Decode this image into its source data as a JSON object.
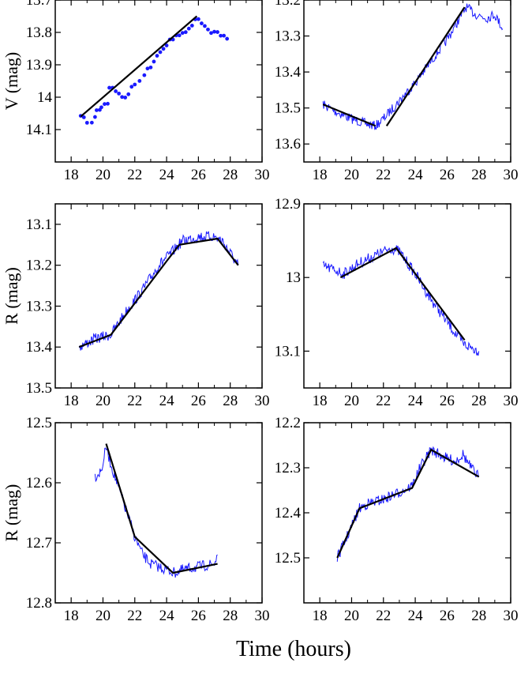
{
  "xlabel": "Time  (hours)",
  "colors": {
    "data": "#1a1aff",
    "fit": "#000000",
    "frame": "#000000"
  },
  "chart_data": [
    {
      "type": "line",
      "panel": "top-left",
      "style": "dots",
      "ylabel": "V (mag)",
      "xlim": [
        17,
        30
      ],
      "ylim": [
        14.2,
        13.7
      ],
      "inverted_y": true,
      "xticks": [
        18,
        20,
        22,
        24,
        26,
        28,
        30
      ],
      "yticks": [
        13.7,
        13.8,
        13.9,
        14,
        14.1
      ],
      "ytick_labels": [
        "13.7",
        "13.8",
        "13.9",
        "14",
        "14.1"
      ],
      "series": [
        {
          "role": "data",
          "points": [
            [
              18.6,
              14.06
            ],
            [
              18.8,
              14.06
            ],
            [
              19.0,
              14.08
            ],
            [
              19.3,
              14.08
            ],
            [
              19.5,
              14.06
            ],
            [
              19.6,
              14.04
            ],
            [
              19.8,
              14.04
            ],
            [
              19.9,
              14.03
            ],
            [
              20.1,
              14.02
            ],
            [
              20.3,
              14.02
            ],
            [
              20.4,
              13.97
            ],
            [
              20.6,
              13.97
            ],
            [
              20.8,
              13.98
            ],
            [
              21.0,
              13.99
            ],
            [
              21.2,
              14.0
            ],
            [
              21.4,
              14.0
            ],
            [
              21.6,
              13.99
            ],
            [
              21.8,
              13.97
            ],
            [
              22.0,
              13.96
            ],
            [
              22.3,
              13.95
            ],
            [
              22.6,
              13.93
            ],
            [
              22.8,
              13.91
            ],
            [
              23.0,
              13.91
            ],
            [
              23.2,
              13.89
            ],
            [
              23.4,
              13.87
            ],
            [
              23.6,
              13.86
            ],
            [
              23.8,
              13.85
            ],
            [
              24.0,
              13.84
            ],
            [
              24.2,
              13.82
            ],
            [
              24.4,
              13.82
            ],
            [
              24.6,
              13.81
            ],
            [
              24.8,
              13.81
            ],
            [
              25.0,
              13.8
            ],
            [
              25.2,
              13.8
            ],
            [
              25.4,
              13.79
            ],
            [
              25.6,
              13.78
            ],
            [
              25.8,
              13.76
            ],
            [
              26.0,
              13.76
            ],
            [
              26.2,
              13.77
            ],
            [
              26.4,
              13.78
            ],
            [
              26.6,
              13.79
            ],
            [
              26.8,
              13.8
            ],
            [
              27.0,
              13.8
            ],
            [
              27.2,
              13.8
            ],
            [
              27.4,
              13.81
            ],
            [
              27.6,
              13.81
            ],
            [
              27.8,
              13.82
            ]
          ]
        },
        {
          "role": "fit",
          "points": [
            [
              18.6,
              14.06
            ],
            [
              25.9,
              13.75
            ]
          ]
        }
      ]
    },
    {
      "type": "line",
      "panel": "top-right",
      "style": "noisy-line",
      "ylabel": "",
      "xlim": [
        17,
        30
      ],
      "ylim": [
        13.65,
        13.2
      ],
      "inverted_y": true,
      "xticks": [
        18,
        20,
        22,
        24,
        26,
        28,
        30
      ],
      "yticks": [
        13.2,
        13.3,
        13.4,
        13.5,
        13.6
      ],
      "ytick_labels": [
        "13.2",
        "13.3",
        "13.4",
        "13.5",
        "13.6"
      ],
      "series": [
        {
          "role": "data",
          "points": [
            [
              18.2,
              13.49
            ],
            [
              19.0,
              13.51
            ],
            [
              20.0,
              13.53
            ],
            [
              21.0,
              13.545
            ],
            [
              21.5,
              13.55
            ],
            [
              22.0,
              13.53
            ],
            [
              23.0,
              13.48
            ],
            [
              24.0,
              13.43
            ],
            [
              25.0,
              13.37
            ],
            [
              26.0,
              13.31
            ],
            [
              26.8,
              13.25
            ],
            [
              27.2,
              13.22
            ],
            [
              27.8,
              13.24
            ],
            [
              28.5,
              13.25
            ],
            [
              29.0,
              13.24
            ],
            [
              29.5,
              13.28
            ]
          ]
        },
        {
          "role": "fit",
          "points": [
            [
              18.2,
              13.49
            ],
            [
              21.5,
              13.55
            ]
          ]
        },
        {
          "role": "fit",
          "points": [
            [
              22.2,
              13.55
            ],
            [
              27.1,
              13.22
            ]
          ]
        }
      ]
    },
    {
      "type": "line",
      "panel": "middle-left",
      "style": "noisy-line",
      "ylabel": "R (mag)",
      "xlim": [
        17,
        30
      ],
      "ylim": [
        13.5,
        13.05
      ],
      "inverted_y": true,
      "xticks": [
        18,
        20,
        22,
        24,
        26,
        28,
        30
      ],
      "yticks": [
        13.1,
        13.2,
        13.3,
        13.4,
        13.5
      ],
      "ytick_labels": [
        "13.1",
        "13.2",
        "13.3",
        "13.4",
        "13.5"
      ],
      "series": [
        {
          "role": "data",
          "points": [
            [
              18.5,
              13.4
            ],
            [
              19.5,
              13.38
            ],
            [
              20.5,
              13.37
            ],
            [
              21.5,
              13.31
            ],
            [
              22.5,
              13.26
            ],
            [
              23.5,
              13.2
            ],
            [
              24.3,
              13.17
            ],
            [
              25.0,
              13.14
            ],
            [
              26.0,
              13.13
            ],
            [
              27.0,
              13.13
            ],
            [
              27.5,
              13.14
            ],
            [
              28.0,
              13.17
            ],
            [
              28.5,
              13.2
            ]
          ]
        },
        {
          "role": "fit",
          "points": [
            [
              18.5,
              13.4
            ],
            [
              20.5,
              13.37
            ],
            [
              24.0,
              13.19
            ],
            [
              24.8,
              13.15
            ],
            [
              27.2,
              13.135
            ],
            [
              28.5,
              13.2
            ]
          ]
        }
      ]
    },
    {
      "type": "line",
      "panel": "middle-right",
      "style": "noisy-line",
      "ylabel": "",
      "xlim": [
        17,
        30
      ],
      "ylim": [
        13.15,
        12.9
      ],
      "inverted_y": true,
      "xticks": [
        18,
        20,
        22,
        24,
        26,
        28,
        30
      ],
      "yticks": [
        12.9,
        13,
        13.1
      ],
      "ytick_labels": [
        "12.9",
        "13",
        "13.1"
      ],
      "series": [
        {
          "role": "data",
          "points": [
            [
              18.2,
              12.985
            ],
            [
              19.0,
              12.99
            ],
            [
              19.5,
              12.995
            ],
            [
              20.5,
              12.98
            ],
            [
              21.5,
              12.97
            ],
            [
              22.5,
              12.96
            ],
            [
              23.0,
              12.965
            ],
            [
              24.0,
              12.995
            ],
            [
              25.0,
              13.03
            ],
            [
              26.0,
              13.06
            ],
            [
              27.0,
              13.09
            ],
            [
              28.0,
              13.1
            ]
          ]
        },
        {
          "role": "fit",
          "points": [
            [
              19.3,
              13.0
            ],
            [
              22.8,
              12.96
            ],
            [
              27.1,
              13.085
            ]
          ]
        }
      ]
    },
    {
      "type": "line",
      "panel": "bottom-left",
      "style": "noisy-line",
      "ylabel": "R (mag)",
      "xlim": [
        17,
        30
      ],
      "ylim": [
        12.8,
        12.5
      ],
      "inverted_y": true,
      "xticks": [
        18,
        20,
        22,
        24,
        26,
        28,
        30
      ],
      "yticks": [
        12.5,
        12.6,
        12.7,
        12.8
      ],
      "ytick_labels": [
        "12.5",
        "12.6",
        "12.7",
        "12.8"
      ],
      "series": [
        {
          "role": "data",
          "points": [
            [
              19.5,
              12.59
            ],
            [
              19.9,
              12.58
            ],
            [
              20.2,
              12.54
            ],
            [
              20.5,
              12.57
            ],
            [
              21.0,
              12.61
            ],
            [
              21.5,
              12.65
            ],
            [
              22.0,
              12.69
            ],
            [
              22.5,
              12.72
            ],
            [
              23.0,
              12.735
            ],
            [
              24.0,
              12.745
            ],
            [
              24.5,
              12.75
            ],
            [
              25.0,
              12.745
            ],
            [
              26.0,
              12.74
            ],
            [
              27.0,
              12.735
            ],
            [
              27.2,
              12.72
            ]
          ]
        },
        {
          "role": "fit",
          "points": [
            [
              20.2,
              12.535
            ],
            [
              22.0,
              12.69
            ],
            [
              24.4,
              12.75
            ],
            [
              27.2,
              12.735
            ]
          ]
        }
      ]
    },
    {
      "type": "line",
      "panel": "bottom-right",
      "style": "noisy-line",
      "ylabel": "",
      "xlim": [
        17,
        30
      ],
      "ylim": [
        12.6,
        12.2
      ],
      "inverted_y": true,
      "xticks": [
        18,
        20,
        22,
        24,
        26,
        28,
        30
      ],
      "yticks": [
        12.2,
        12.3,
        12.4,
        12.5
      ],
      "ytick_labels": [
        "12.2",
        "12.3",
        "12.4",
        "12.5"
      ],
      "series": [
        {
          "role": "data",
          "points": [
            [
              19.1,
              12.5
            ],
            [
              19.5,
              12.47
            ],
            [
              20.0,
              12.43
            ],
            [
              20.5,
              12.39
            ],
            [
              21.0,
              12.38
            ],
            [
              22.0,
              12.37
            ],
            [
              23.0,
              12.355
            ],
            [
              23.8,
              12.34
            ],
            [
              24.3,
              12.3
            ],
            [
              25.0,
              12.26
            ],
            [
              25.5,
              12.27
            ],
            [
              26.0,
              12.28
            ],
            [
              26.5,
              12.285
            ],
            [
              27.0,
              12.27
            ],
            [
              27.5,
              12.3
            ],
            [
              28.0,
              12.32
            ]
          ]
        },
        {
          "role": "fit",
          "points": [
            [
              19.1,
              12.5
            ],
            [
              20.5,
              12.39
            ],
            [
              23.8,
              12.345
            ],
            [
              25.0,
              12.26
            ],
            [
              28.0,
              12.32
            ]
          ]
        }
      ]
    }
  ]
}
